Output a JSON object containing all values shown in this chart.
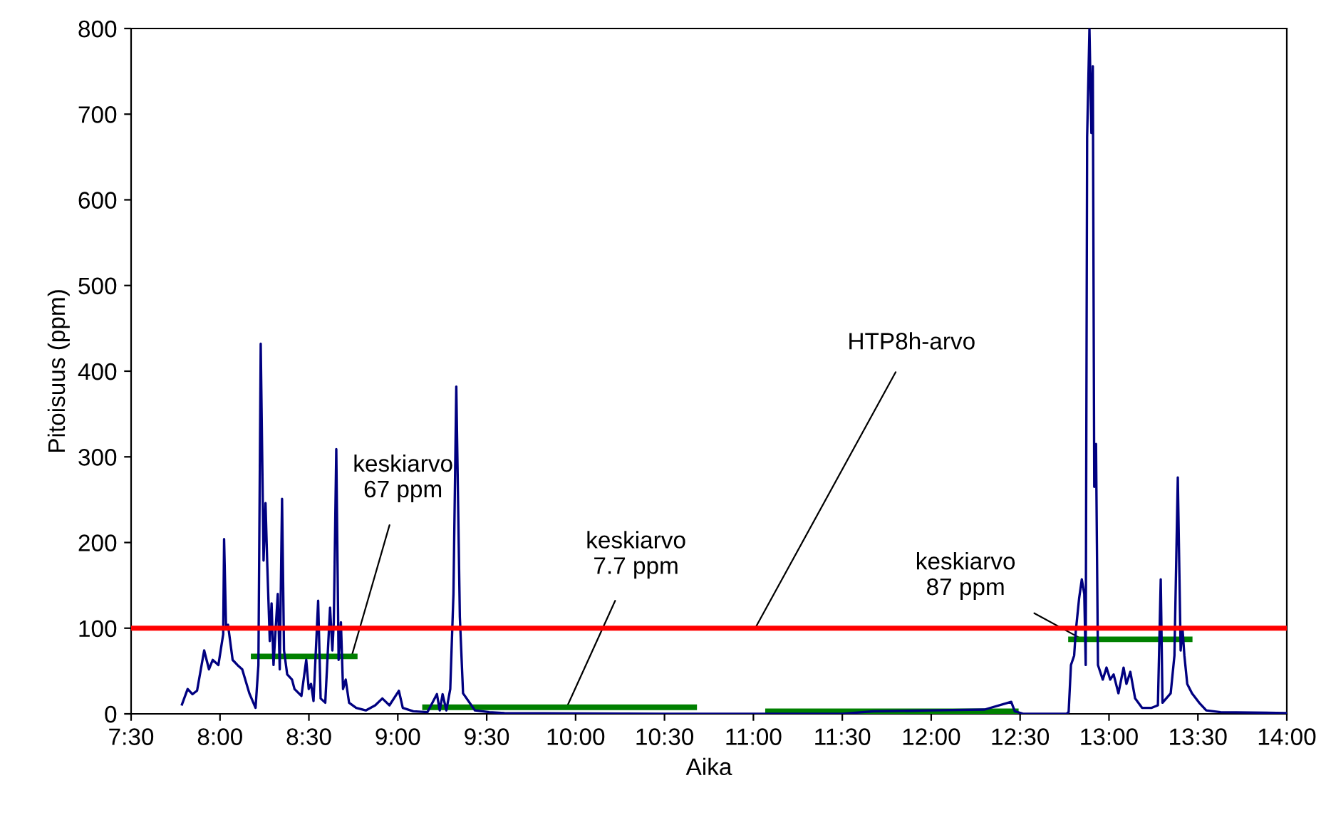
{
  "chart_data": {
    "type": "line",
    "xlabel": "Aika",
    "ylabel": "Pitoisuus (ppm)",
    "xlim": [
      7.5,
      14
    ],
    "xticks": [
      {
        "value": 7.5,
        "label": "7:30"
      },
      {
        "value": 8,
        "label": "8:00"
      },
      {
        "value": 8.5,
        "label": "8:30"
      },
      {
        "value": 9,
        "label": "9:00"
      },
      {
        "value": 9.5,
        "label": "9:30"
      },
      {
        "value": 10,
        "label": "10:00"
      },
      {
        "value": 10.5,
        "label": "10:30"
      },
      {
        "value": 11,
        "label": "11:00"
      },
      {
        "value": 11.5,
        "label": "11:30"
      },
      {
        "value": 12,
        "label": "12:00"
      },
      {
        "value": 12.5,
        "label": "12:30"
      },
      {
        "value": 13,
        "label": "13:00"
      },
      {
        "value": 13.5,
        "label": "13:30"
      },
      {
        "value": 14,
        "label": "14:00"
      }
    ],
    "ylim": [
      0,
      800
    ],
    "yticks": [
      0,
      100,
      200,
      300,
      400,
      500,
      600,
      700,
      800
    ],
    "grid": false,
    "legend": false,
    "marker": "none",
    "line_style": "solid",
    "series": [
      {
        "color": "#000080",
        "x": [
          7.786,
          7.818,
          7.845,
          7.871,
          7.911,
          7.938,
          7.959,
          7.991,
          8.018,
          8.023,
          8.034,
          8.045,
          8.071,
          8.098,
          8.125,
          8.165,
          8.2,
          8.216,
          8.229,
          8.245,
          8.256,
          8.266,
          8.28,
          8.29,
          8.301,
          8.312,
          8.325,
          8.336,
          8.349,
          8.36,
          8.378,
          8.405,
          8.419,
          8.458,
          8.485,
          8.499,
          8.512,
          8.526,
          8.552,
          8.566,
          8.592,
          8.619,
          8.632,
          8.64,
          8.654,
          8.667,
          8.68,
          8.692,
          8.707,
          8.726,
          8.766,
          8.82,
          8.873,
          8.913,
          8.953,
          9.006,
          9.028,
          9.087,
          9.167,
          9.22,
          9.236,
          9.252,
          9.273,
          9.295,
          9.313,
          9.329,
          9.349,
          9.367,
          9.434,
          9.514,
          9.6,
          10.5,
          11.5,
          11.675,
          12.0,
          12.3,
          12.45,
          12.47,
          12.52,
          12.76,
          12.773,
          12.786,
          12.804,
          12.813,
          12.832,
          12.847,
          12.861,
          12.869,
          12.877,
          12.89,
          12.901,
          12.909,
          12.917,
          12.927,
          12.938,
          12.965,
          12.986,
          13.007,
          13.026,
          13.053,
          13.082,
          13.098,
          13.12,
          13.147,
          13.186,
          13.24,
          13.275,
          13.291,
          13.301,
          13.347,
          13.368,
          13.387,
          13.403,
          13.413,
          13.424,
          13.44,
          13.467,
          13.507,
          13.547,
          13.627,
          14.0
        ],
        "values": [
          11,
          29,
          23,
          27,
          74,
          52,
          63,
          57,
          93,
          204,
          101,
          104,
          63,
          57,
          52,
          24,
          7,
          57,
          432,
          179,
          246,
          173,
          85,
          129,
          57,
          96,
          140,
          52,
          251,
          74,
          46,
          40,
          29,
          21,
          63,
          29,
          35,
          15,
          132,
          18,
          13,
          124,
          74,
          107,
          309,
          63,
          107,
          29,
          40,
          13,
          7,
          4,
          10,
          18,
          10,
          27,
          7,
          3,
          2,
          23,
          4,
          23,
          4,
          29,
          140,
          382,
          113,
          24,
          4,
          2,
          1,
          0,
          0,
          3,
          4,
          5,
          14,
          3,
          0,
          0,
          2,
          57,
          68,
          96,
          135,
          157,
          140,
          57,
          673,
          800,
          678,
          756,
          265,
          315,
          57,
          40,
          54,
          40,
          46,
          24,
          54,
          35,
          49,
          18,
          7,
          7,
          10,
          157,
          13,
          24,
          68,
          276,
          74,
          101,
          68,
          35,
          24,
          13,
          4,
          2,
          1
        ]
      },
      {
        "type": "line",
        "color": "#008000",
        "x": [
          8.189,
          8.758
        ],
        "values": [
          67,
          67
        ]
      },
      {
        "type": "line",
        "color": "#008000",
        "x": [
          9.153,
          10.667
        ],
        "values": [
          7.7,
          7.7
        ]
      },
      {
        "type": "line",
        "color": "#008000",
        "x": [
          11.082,
          12.476
        ],
        "values": [
          3,
          3
        ]
      },
      {
        "type": "line",
        "color": "#008000",
        "x": [
          12.786,
          13.454
        ],
        "values": [
          87,
          87
        ]
      }
    ],
    "ref_lines": [
      {
        "axis": "y",
        "value": 100,
        "label": "HTP8h-arvo",
        "color": "#ff0000"
      }
    ],
    "annotations": [
      {
        "text": "keskiarvo\n67 ppm",
        "x": 8.74,
        "y": 67
      },
      {
        "text": "keskiarvo\n7.7 ppm",
        "x": 9.95,
        "y": 7.7
      },
      {
        "text": "keskiarvo\n87 ppm",
        "x": 12.85,
        "y": 87
      }
    ]
  }
}
